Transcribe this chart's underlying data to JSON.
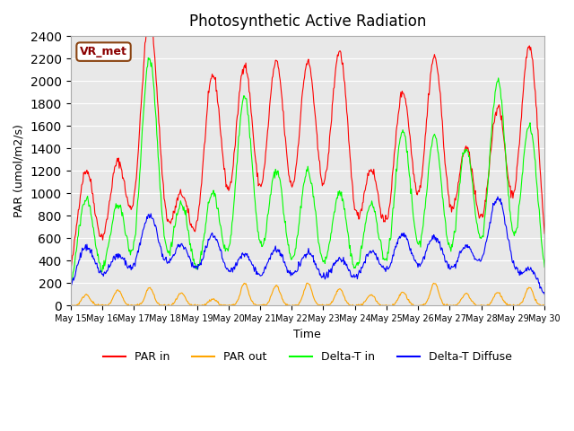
{
  "title": "Photosynthetic Active Radiation",
  "ylabel": "PAR (umol/m2/s)",
  "xlabel": "Time",
  "annotation": "VR_met",
  "ylim": [
    0,
    2400
  ],
  "bg_color": "#e8e8e8",
  "colors": {
    "par_in": "#ff0000",
    "par_out": "#ffa500",
    "delta_t_in": "#00ff00",
    "delta_t_diffuse": "#0000ff"
  },
  "legend_labels": [
    "PAR in",
    "PAR out",
    "Delta-T in",
    "Delta-T Diffuse"
  ],
  "x_tick_labels": [
    "May 15",
    "May 16",
    "May 17",
    "May 18",
    "May 19",
    "May 20",
    "May 21",
    "May 22",
    "May 23",
    "May 24",
    "May 25",
    "May 26",
    "May 27",
    "May 28",
    "May 29",
    "May 30"
  ],
  "days": 15,
  "pts_per_day": 48,
  "par_in_peaks": [
    1200,
    1270,
    2550,
    980,
    2040,
    2130,
    2150,
    2150,
    2250,
    1200,
    1890,
    2200,
    1390,
    1750,
    2300
  ],
  "par_out_peaks": [
    100,
    140,
    160,
    110,
    60,
    200,
    180,
    200,
    150,
    100,
    120,
    200,
    110,
    120,
    160
  ],
  "delta_t_in_peaks": [
    950,
    900,
    2200,
    900,
    1000,
    1850,
    1200,
    1200,
    1000,
    900,
    1550,
    1500,
    1400,
    2000,
    1600
  ],
  "delta_t_diffuse_peaks": [
    520,
    440,
    800,
    530,
    620,
    450,
    490,
    460,
    410,
    470,
    630,
    600,
    520,
    950,
    320
  ]
}
